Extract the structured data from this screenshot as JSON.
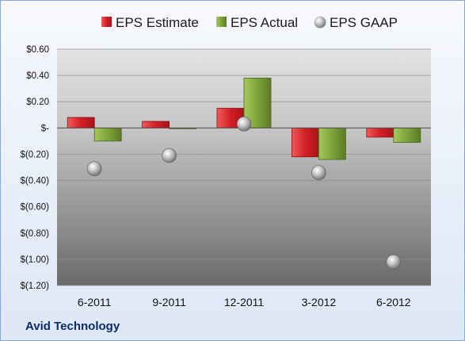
{
  "company_label": "Avid Technology",
  "legend": {
    "estimate": "EPS Estimate",
    "actual": "EPS Actual",
    "gaap": "EPS GAAP"
  },
  "colors": {
    "estimate": "#d21f26",
    "actual": "#7ea33a",
    "gaap": "#a9a9a9"
  },
  "chart_data": {
    "type": "bar",
    "categories": [
      "6-2011",
      "9-2011",
      "12-2011",
      "3-2012",
      "6-2012"
    ],
    "series": [
      {
        "name": "EPS Estimate",
        "kind": "bar",
        "values": [
          0.08,
          0.05,
          0.15,
          -0.22,
          -0.07
        ]
      },
      {
        "name": "EPS Actual",
        "kind": "bar",
        "values": [
          -0.1,
          0.0,
          0.38,
          -0.24,
          -0.11
        ]
      },
      {
        "name": "EPS GAAP",
        "kind": "marker",
        "values": [
          -0.31,
          -0.21,
          0.03,
          -0.34,
          -1.02
        ]
      }
    ],
    "ylim": [
      -1.2,
      0.6
    ],
    "yticks": [
      0.6,
      0.4,
      0.2,
      0,
      -0.2,
      -0.4,
      -0.6,
      -0.8,
      -1.0,
      -1.2
    ],
    "ytick_labels": [
      "$0.60",
      "$0.40",
      "$0.20",
      "$-",
      "$(0.20)",
      "$(0.40)",
      "$(0.60)",
      "$(0.80)",
      "$(1.00)",
      "$(1.20)"
    ],
    "legend_position": "top",
    "grid": true
  }
}
